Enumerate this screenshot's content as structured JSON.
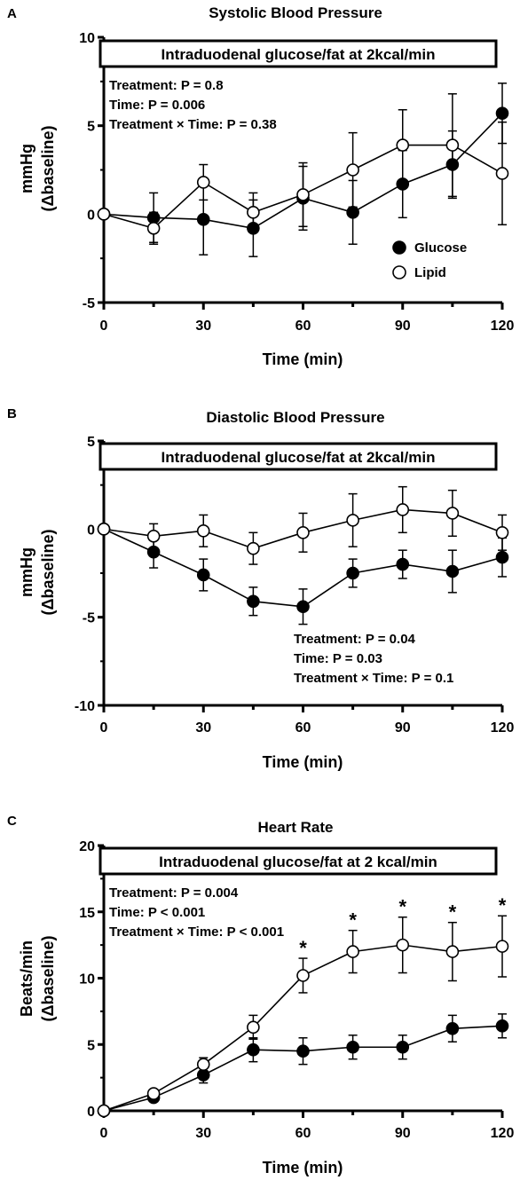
{
  "chart_data": [
    {
      "type": "line",
      "panel": "A",
      "title": "Systolic Blood Pressure",
      "ylabel_line1": "mmHg",
      "ylabel_line2": "(Δbaseline)",
      "xlabel": "Time (min)",
      "ylim": [
        -5,
        10
      ],
      "yticks": [
        "10",
        "5",
        "0",
        "-5"
      ],
      "xlim": [
        0,
        120
      ],
      "xticks": [
        "0",
        "30",
        "60",
        "90",
        "120"
      ],
      "box_label": "Intraduodenal glucose/fat at 2kcal/min",
      "stats": [
        "Treatment: P = 0.8",
        "Time: P = 0.006",
        "Treatment × Time: P = 0.38"
      ],
      "legend": {
        "glucose": "Glucose",
        "lipid": "Lipid"
      },
      "x": [
        0,
        15,
        30,
        45,
        60,
        75,
        90,
        105,
        120
      ],
      "series": [
        {
          "name": "Glucose",
          "values": [
            0,
            -0.2,
            -0.3,
            -0.8,
            0.9,
            0.1,
            1.7,
            2.8,
            5.7
          ],
          "err": [
            0,
            1.4,
            2.0,
            1.6,
            1.8,
            1.8,
            1.9,
            1.9,
            1.7
          ]
        },
        {
          "name": "Lipid",
          "values": [
            0,
            -0.8,
            1.8,
            0.1,
            1.1,
            2.5,
            3.9,
            3.9,
            2.3
          ],
          "err": [
            0,
            0.9,
            1.0,
            1.1,
            1.8,
            2.1,
            2.0,
            2.9,
            2.9
          ]
        }
      ],
      "asterisks": []
    },
    {
      "type": "line",
      "panel": "B",
      "title": "Diastolic Blood Pressure",
      "ylabel_line1": "mmHg",
      "ylabel_line2": "(Δbaseline)",
      "xlabel": "Time (min)",
      "ylim": [
        -10,
        5
      ],
      "yticks": [
        "5",
        "0",
        "-5",
        "-10"
      ],
      "xlim": [
        0,
        120
      ],
      "xticks": [
        "0",
        "30",
        "60",
        "90",
        "120"
      ],
      "box_label": "Intraduodenal glucose/fat at 2kcal/min",
      "stats": [
        "Treatment: P = 0.04",
        "Time: P = 0.03",
        "Treatment × Time: P = 0.1"
      ],
      "legend": {},
      "x": [
        0,
        15,
        30,
        45,
        60,
        75,
        90,
        105,
        120
      ],
      "series": [
        {
          "name": "Glucose",
          "values": [
            0,
            -1.3,
            -2.6,
            -4.1,
            -4.4,
            -2.5,
            -2.0,
            -2.4,
            -1.6
          ],
          "err": [
            0,
            0.9,
            0.9,
            0.8,
            1.0,
            0.8,
            0.8,
            1.2,
            1.1
          ]
        },
        {
          "name": "Lipid",
          "values": [
            0,
            -0.4,
            -0.1,
            -1.1,
            -0.2,
            0.5,
            1.1,
            0.9,
            -0.2
          ],
          "err": [
            0,
            0.7,
            0.9,
            0.9,
            1.1,
            1.5,
            1.3,
            1.3,
            1.0
          ]
        }
      ],
      "asterisks": []
    },
    {
      "type": "line",
      "panel": "C",
      "title": "Heart Rate",
      "ylabel_line1": "Beats/min",
      "ylabel_line2": "(Δbaseline)",
      "xlabel": "Time (min)",
      "ylim": [
        0,
        20
      ],
      "yticks": [
        "20",
        "15",
        "10",
        "5",
        "0"
      ],
      "xlim": [
        0,
        120
      ],
      "xticks": [
        "0",
        "30",
        "60",
        "90",
        "120"
      ],
      "box_label": "Intraduodenal glucose/fat at 2 kcal/min",
      "stats": [
        "Treatment: P = 0.004",
        "Time: P < 0.001",
        "Treatment × Time: P < 0.001"
      ],
      "legend": {},
      "x": [
        0,
        15,
        30,
        45,
        60,
        75,
        90,
        105,
        120
      ],
      "series": [
        {
          "name": "Glucose",
          "values": [
            0,
            1.0,
            2.7,
            4.6,
            4.5,
            4.8,
            4.8,
            6.2,
            6.4
          ],
          "err": [
            0,
            0.3,
            0.6,
            0.9,
            1.0,
            0.9,
            0.9,
            1.0,
            0.9
          ]
        },
        {
          "name": "Lipid",
          "values": [
            0,
            1.3,
            3.5,
            6.3,
            10.2,
            12.0,
            12.5,
            12.0,
            12.4
          ],
          "err": [
            0,
            0.3,
            0.5,
            0.9,
            1.3,
            1.6,
            2.1,
            2.2,
            2.3
          ]
        }
      ],
      "asterisks": [
        {
          "x": 60,
          "label": "*"
        },
        {
          "x": 75,
          "label": "*"
        },
        {
          "x": 90,
          "label": "*"
        },
        {
          "x": 105,
          "label": "*"
        },
        {
          "x": 120,
          "label": "*"
        }
      ]
    }
  ]
}
